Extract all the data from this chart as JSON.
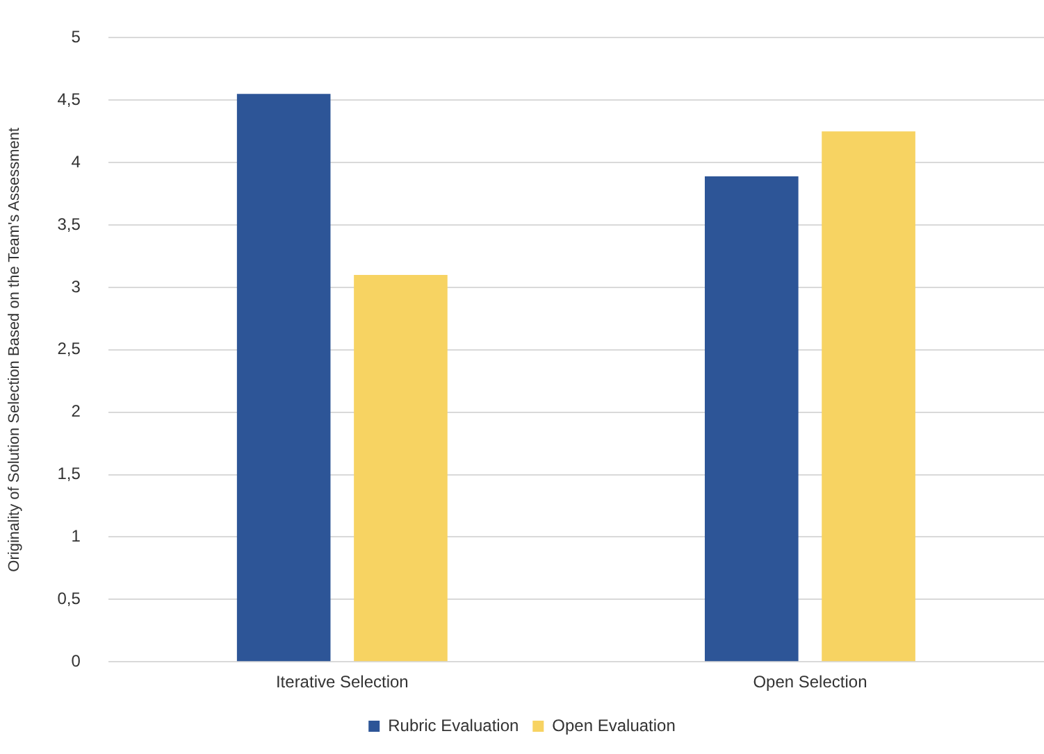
{
  "chart_data": {
    "type": "bar",
    "ylabel": "Originality of Solution Selection Based on the Team's Assessment",
    "categories": [
      "Iterative Selection",
      "Open Selection"
    ],
    "series": [
      {
        "name": "Rubric Evaluation",
        "color": "#2d5597",
        "values": [
          4.55,
          3.89
        ]
      },
      {
        "name": "Open Evaluation",
        "color": "#f7d362",
        "values": [
          3.1,
          4.25
        ]
      }
    ],
    "ylim": [
      0,
      5
    ],
    "yticks": [
      0,
      {
        "value": 0.5,
        "label": "0,5"
      },
      1,
      {
        "value": 1.5,
        "label": "1,5"
      },
      2,
      {
        "value": 2.5,
        "label": "2,5"
      },
      3,
      {
        "value": 3.5,
        "label": "3,5"
      },
      4,
      {
        "value": 4.5,
        "label": "4,5"
      },
      5
    ],
    "grid": "y",
    "legend": "bottom"
  }
}
